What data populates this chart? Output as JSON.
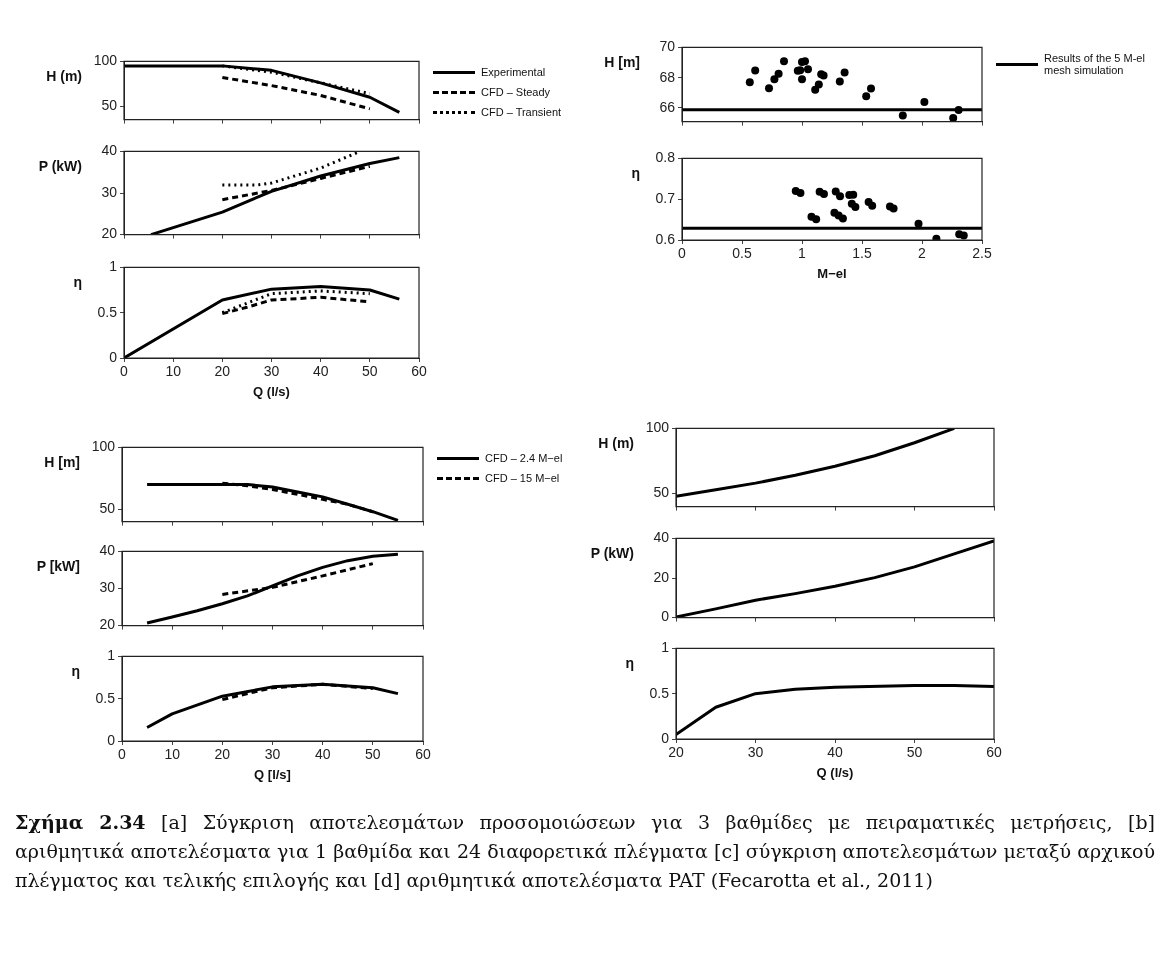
{
  "chart_data": [
    {
      "type": "line",
      "ylabel": "H (m)",
      "xlim": [
        0,
        60
      ],
      "xticks": [
        0,
        10,
        20,
        30,
        40,
        50,
        60
      ],
      "ylim": [
        35,
        100
      ],
      "yticks": [
        50,
        100
      ],
      "tick_labels": "y",
      "legend": "right",
      "annotations": [
        "Σχήμα 2.34",
        "[a] Σύγκριση αποτελεσμάτων προσομοιώσεων για 3 βαθμίδες με πειραματικές μετρήσεις, [b] αριθμητικά αποτελέσματα για 1 βαθμίδα και 24 διαφορετικά πλέγματα [c] σύγκριση αποτελεσμάτων μεταξύ αρχικού πλέγματος και τελικής επιλογής και [d] αριθμητικά αποτελέσματα PAT (Fecarotta et al., 2011)"
      ],
      "series": [
        {
          "name": "Experimental",
          "color": "#000000",
          "line_style": "solid",
          "x": [
            0,
            20,
            30,
            40,
            50,
            56
          ],
          "values": [
            95,
            95,
            90,
            76,
            60,
            43
          ]
        },
        {
          "name": "CFD – Steady",
          "color": "#000000",
          "line_style": "dashed",
          "x": [
            20,
            30,
            40,
            50
          ],
          "values": [
            82,
            73,
            62,
            47
          ]
        },
        {
          "name": "CFD – Transient",
          "color": "#000000",
          "line_style": "dotted",
          "x": [
            20,
            30,
            40,
            50
          ],
          "values": [
            95,
            88,
            76,
            64
          ]
        }
      ]
    },
    {
      "type": "line",
      "ylabel": "P (kW)",
      "xlim": [
        0,
        60
      ],
      "xticks": [
        0,
        10,
        20,
        30,
        40,
        50,
        60
      ],
      "ylim": [
        20,
        40
      ],
      "yticks": [
        20,
        30,
        40
      ],
      "tick_labels": "y",
      "series": [
        {
          "color": "#000000",
          "line_style": "solid",
          "x": [
            5.5,
            20,
            30,
            40,
            50,
            56
          ],
          "values": [
            20,
            25.4,
            30.4,
            34.1,
            37.1,
            38.5
          ]
        },
        {
          "color": "#000000",
          "line_style": "dashed",
          "x": [
            20,
            30,
            40,
            50
          ],
          "values": [
            28.4,
            30.6,
            33.5,
            36.4
          ]
        },
        {
          "color": "#000000",
          "line_style": "dotted",
          "x": [
            20,
            27,
            30,
            40,
            48
          ],
          "values": [
            31.9,
            31.9,
            32.4,
            36,
            40
          ]
        }
      ]
    },
    {
      "type": "line",
      "ylabel": "η",
      "xlabel": "Q (l/s)",
      "xlim": [
        0,
        60
      ],
      "xticks": [
        0,
        10,
        20,
        30,
        40,
        50,
        60
      ],
      "ylim": [
        0,
        1
      ],
      "yticks": [
        0,
        0.5,
        1
      ],
      "series": [
        {
          "color": "#000000",
          "line_style": "solid",
          "x": [
            0,
            20,
            30,
            40,
            50,
            56
          ],
          "values": [
            0,
            0.64,
            0.76,
            0.79,
            0.75,
            0.65
          ]
        },
        {
          "color": "#000000",
          "line_style": "dashed",
          "x": [
            20,
            25,
            30,
            40,
            50
          ],
          "values": [
            0.49,
            0.56,
            0.64,
            0.67,
            0.62
          ]
        },
        {
          "color": "#000000",
          "line_style": "dotted",
          "x": [
            20,
            30,
            40,
            50
          ],
          "values": [
            0.5,
            0.71,
            0.74,
            0.71
          ]
        }
      ]
    },
    {
      "type": "scatter",
      "ylabel": "H [m]",
      "xlim": [
        0,
        2.5
      ],
      "xticks": [
        0,
        0.5,
        1,
        1.5,
        2,
        2.5
      ],
      "ylim": [
        65.1,
        70
      ],
      "yticks": [
        66,
        68,
        70
      ],
      "tick_labels": "y",
      "legend": "right",
      "series": [
        {
          "color": "#000000",
          "marker": "circle",
          "x": [
            0.565,
            0.61,
            0.725,
            0.77,
            0.805,
            0.85,
            0.965,
            0.985,
            1.0,
            1.0,
            1.025,
            1.05,
            1.11,
            1.14,
            1.16,
            1.18,
            1.315,
            1.355,
            1.535,
            1.575,
            1.84,
            2.02,
            2.26,
            2.305
          ],
          "values": [
            67.7,
            68.47,
            67.3,
            67.89,
            68.26,
            69.09,
            68.45,
            68.49,
            67.89,
            69.04,
            69.08,
            68.55,
            67.21,
            67.55,
            68.23,
            68.15,
            67.74,
            68.34,
            66.77,
            67.28,
            65.51,
            66.4,
            65.34,
            65.87
          ]
        },
        {
          "type": "line",
          "name": "Results of the 5 M-el mesh simulation",
          "color": "#000000",
          "line_style": "solid",
          "x": [
            0,
            2.5
          ],
          "values": [
            65.89,
            65.89
          ]
        }
      ]
    },
    {
      "type": "scatter",
      "ylabel": "η",
      "xlabel": "M−el",
      "xlim": [
        0,
        2.5
      ],
      "xticks": [
        0,
        0.5,
        1,
        1.5,
        2,
        2.5
      ],
      "ylim": [
        0.6,
        0.8
      ],
      "yticks": [
        0.6,
        0.7,
        0.8
      ],
      "series": [
        {
          "color": "#000000",
          "marker": "circle",
          "x": [
            0.948,
            0.987,
            1.079,
            1.118,
            1.147,
            1.183,
            1.27,
            1.281,
            1.305,
            1.317,
            1.341,
            1.394,
            1.427,
            1.415,
            1.445,
            1.555,
            1.585,
            1.733,
            1.763,
            1.971,
            2.12,
            2.31,
            2.348
          ],
          "values": [
            0.72,
            0.715,
            0.657,
            0.651,
            0.718,
            0.713,
            0.667,
            0.719,
            0.66,
            0.707,
            0.653,
            0.71,
            0.711,
            0.689,
            0.681,
            0.693,
            0.684,
            0.682,
            0.677,
            0.64,
            0.603,
            0.614,
            0.611
          ]
        },
        {
          "type": "line",
          "color": "#000000",
          "line_style": "solid",
          "x": [
            0,
            2.5
          ],
          "values": [
            0.629,
            0.629
          ]
        }
      ]
    },
    {
      "type": "line",
      "ylabel": "H [m]",
      "xlim": [
        0,
        60
      ],
      "xticks": [
        0,
        10,
        20,
        30,
        40,
        50,
        60
      ],
      "ylim": [
        40,
        100
      ],
      "yticks": [
        50,
        100
      ],
      "tick_labels": "y",
      "legend": "right",
      "series": [
        {
          "name": "CFD – 2.4 M−el",
          "color": "#000000",
          "line_style": "solid",
          "x": [
            5,
            10,
            20,
            25,
            30,
            35,
            40,
            45,
            50,
            55
          ],
          "values": [
            70,
            70,
            70,
            70,
            68,
            64,
            60,
            54,
            48,
            41
          ]
        },
        {
          "name": "CFD – 15 M−el",
          "color": "#000000",
          "line_style": "dashed",
          "x": [
            20,
            25,
            30,
            35,
            40,
            45,
            50
          ],
          "values": [
            71,
            69,
            66,
            62,
            58,
            54,
            48
          ]
        }
      ]
    },
    {
      "type": "line",
      "ylabel": "P [kW]",
      "xlim": [
        0,
        60
      ],
      "xticks": [
        0,
        10,
        20,
        30,
        40,
        50,
        60
      ],
      "ylim": [
        20,
        40
      ],
      "yticks": [
        20,
        30,
        40
      ],
      "tick_labels": "y",
      "series": [
        {
          "color": "#000000",
          "line_style": "solid",
          "x": [
            5,
            10,
            15,
            20,
            25,
            30,
            35,
            40,
            45,
            50,
            55
          ],
          "values": [
            20.7,
            22.3,
            24,
            25.9,
            28,
            30.7,
            33.4,
            35.7,
            37.5,
            38.7,
            39.2
          ]
        },
        {
          "color": "#000000",
          "line_style": "dashed",
          "x": [
            20,
            30,
            40,
            50
          ],
          "values": [
            28.4,
            30.3,
            33.4,
            36.7
          ]
        }
      ]
    },
    {
      "type": "line",
      "ylabel": "η",
      "xlabel": "Q [l/s]",
      "xlim": [
        0,
        60
      ],
      "xticks": [
        0,
        10,
        20,
        30,
        40,
        50,
        60
      ],
      "ylim": [
        0,
        1
      ],
      "yticks": [
        0,
        0.5,
        1
      ],
      "series": [
        {
          "color": "#000000",
          "line_style": "solid",
          "x": [
            5,
            10,
            20,
            30,
            40,
            50,
            55
          ],
          "values": [
            0.16,
            0.32,
            0.53,
            0.64,
            0.67,
            0.63,
            0.56
          ]
        },
        {
          "color": "#000000",
          "line_style": "dashed",
          "x": [
            20,
            30,
            40,
            50
          ],
          "values": [
            0.49,
            0.63,
            0.67,
            0.62
          ]
        }
      ]
    },
    {
      "type": "line",
      "ylabel": "H (m)",
      "xlim": [
        20,
        60
      ],
      "xticks": [
        20,
        30,
        40,
        50,
        60
      ],
      "ylim": [
        40,
        100
      ],
      "yticks": [
        50,
        100
      ],
      "tick_labels": "y",
      "series": [
        {
          "color": "#000000",
          "line_style": "solid",
          "x": [
            20,
            25,
            30,
            35,
            40,
            45,
            50,
            55
          ],
          "values": [
            48,
            53,
            58,
            64,
            71,
            79,
            89,
            100
          ]
        }
      ]
    },
    {
      "type": "line",
      "ylabel": "P (kW)",
      "xlim": [
        20,
        60
      ],
      "xticks": [
        20,
        30,
        40,
        50,
        60
      ],
      "ylim": [
        0,
        40
      ],
      "yticks": [
        0,
        20,
        40
      ],
      "tick_labels": "y",
      "series": [
        {
          "color": "#000000",
          "line_style": "solid",
          "x": [
            20,
            25,
            30,
            35,
            40,
            45,
            50,
            55,
            60
          ],
          "values": [
            0.3,
            4.4,
            8.8,
            12.1,
            15.8,
            20.2,
            25.6,
            32.2,
            38.7
          ]
        }
      ]
    },
    {
      "type": "line",
      "ylabel": "η",
      "xlabel": "Q (l/s)",
      "xlim": [
        20,
        60
      ],
      "xticks": [
        20,
        30,
        40,
        50,
        60
      ],
      "ylim": [
        0,
        1
      ],
      "yticks": [
        0,
        0.5,
        1
      ],
      "series": [
        {
          "color": "#000000",
          "line_style": "solid",
          "x": [
            20,
            25,
            30,
            35,
            40,
            50,
            55,
            60
          ],
          "values": [
            0.05,
            0.35,
            0.5,
            0.55,
            0.57,
            0.59,
            0.59,
            0.58
          ]
        }
      ]
    }
  ]
}
